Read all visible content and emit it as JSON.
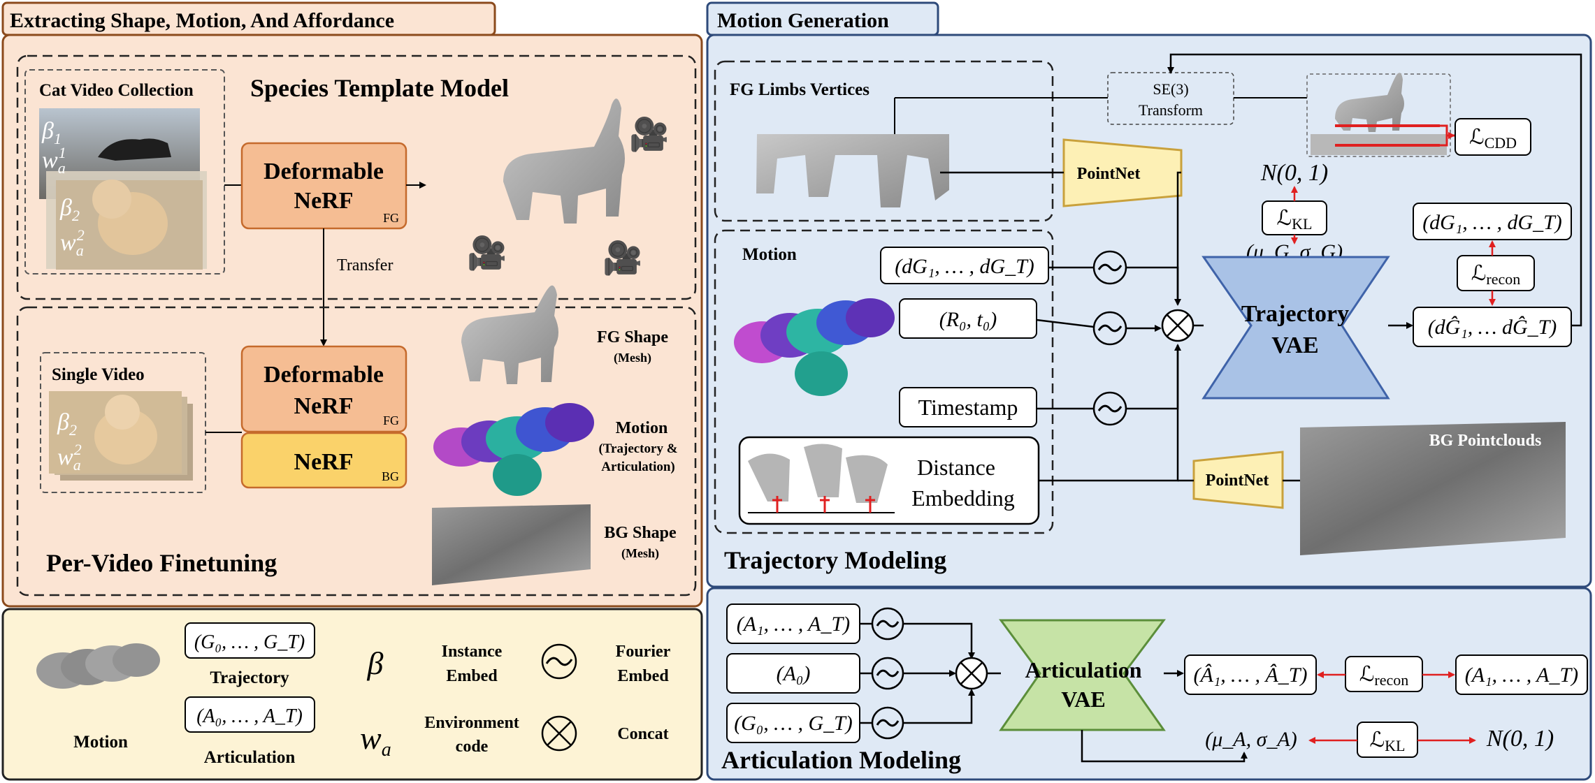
{
  "colors": {
    "left_panel_border": "#8b4a1c",
    "left_panel_fill": "#fbe4d3",
    "left_tab_fill": "#fbe4d3",
    "right_panel_border": "#2e4a7a",
    "right_panel_fill": "#dfe9f5",
    "legend_fill": "#fdf3d5",
    "nerf_orange": "#f5bd93",
    "nerf_orange_border": "#c56a2c",
    "nerf_yellow": "#fad26a",
    "pointnet_fill": "#fdf0b5",
    "pointnet_border": "#c9a13c",
    "traj_vae_fill": "#a9c2e6",
    "traj_vae_border": "#3f63a9",
    "art_vae_fill": "#c6e3a6",
    "art_vae_border": "#5b8e3a",
    "loss_arrow": "#e02020"
  },
  "left": {
    "tab_title": "Extracting Shape, Motion, And Affordance",
    "template_title": "Species Template Model",
    "cat_collection_label": "Cat Video Collection",
    "beta1": "β",
    "beta1_sub": "1",
    "w1": "w",
    "w1_sub": "a",
    "w1_sup": "1",
    "beta2": "β",
    "beta2_sub": "2",
    "w2": "w",
    "w2_sub": "a",
    "w2_sup": "2",
    "deformable_nerf_1a": "Deformable",
    "deformable_nerf_1b": "NeRF",
    "fg_1": "FG",
    "transfer": "Transfer",
    "single_video_label": "Single Video",
    "deformable_nerf_2a": "Deformable",
    "deformable_nerf_2b": "NeRF",
    "fg_2": "FG",
    "nerf_bg": "NeRF",
    "bg_tag": "BG",
    "fg_shape": "FG Shape",
    "fg_shape_sub": "(Mesh)",
    "motion": "Motion",
    "motion_sub1": "(Trajectory &",
    "motion_sub2": "Articulation)",
    "bg_shape": "BG Shape",
    "bg_shape_sub": "(Mesh)",
    "finetune_title": "Per-Video Finetuning"
  },
  "legend": {
    "motion_label": "Motion",
    "traj_formula": "(G₀, … , G_T)",
    "traj_label": "Trajectory",
    "art_formula": "(A₀, … , A_T)",
    "art_label": "Articulation",
    "beta_symbol": "β",
    "instance_embed_1": "Instance",
    "instance_embed_2": "Embed",
    "w_symbol": "w",
    "w_sub": "a",
    "env_code_1": "Environment",
    "env_code_2": "code",
    "fourier_1": "Fourier",
    "fourier_2": "Embed",
    "concat": "Concat"
  },
  "right": {
    "tab_title": "Motion Generation",
    "fg_limbs": "FG Limbs Vertices",
    "se3_1": "SE(3)",
    "se3_2": "Transform",
    "loss_cdd": "ℒ",
    "loss_cdd_sub": "CDD",
    "pointnet_1": "PointNet",
    "n01_top": "N(0, 1)",
    "loss_kl_top": "ℒ",
    "loss_kl_top_sub": "KL",
    "mu_sigma_g": "(μ_G, σ_G)",
    "motion_label": "Motion",
    "dg_input": "(dG₁, … , dG_T)",
    "r0t0": "(R₀, t₀)",
    "timestamp": "Timestamp",
    "distance_1": "Distance",
    "distance_2": "Embedding",
    "traj_vae_1": "Trajectory",
    "traj_vae_2": "VAE",
    "dg_out_top": "(dG₁, … , dG_T)",
    "loss_recon_top": "ℒ",
    "loss_recon_top_sub": "recon",
    "dg_hat": "(dĜ₁, … dĜ_T)",
    "pointnet_2": "PointNet",
    "bg_pointclouds": "BG Pointclouds",
    "traj_modeling": "Trajectory Modeling"
  },
  "articulation": {
    "a_input": "(A₁, … , A_T)",
    "a0_input": "(A₀)",
    "g_input": "(G₀, … , G_T)",
    "art_vae_1": "Articulation",
    "art_vae_2": "VAE",
    "a_hat": "(Â₁, … , Â_T)",
    "loss_recon": "ℒ",
    "loss_recon_sub": "recon",
    "a_gt": "(A₁, … , A_T)",
    "mu_sigma_a": "(μ_A, σ_A)",
    "loss_kl": "ℒ",
    "loss_kl_sub": "KL",
    "n01": "N(0, 1)",
    "title": "Articulation Modeling"
  }
}
